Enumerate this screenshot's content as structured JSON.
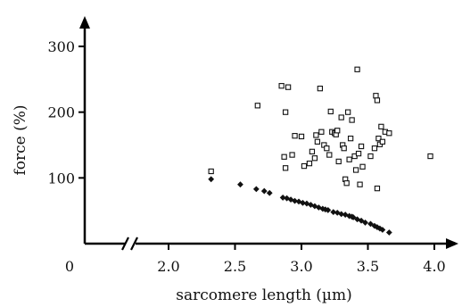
{
  "chart_data": {
    "type": "scatter",
    "xlabel": "sarcomere length (µm)",
    "ylabel": "force (%)",
    "x_ticks": [
      {
        "value": 2.0,
        "label": "2.0"
      },
      {
        "value": 2.5,
        "label": "2.5"
      },
      {
        "value": 3.0,
        "label": "3.0"
      },
      {
        "value": 3.5,
        "label": "3.5"
      },
      {
        "value": 4.0,
        "label": "4.0"
      }
    ],
    "x_origin_label": "0",
    "y_ticks": [
      {
        "value": 100,
        "label": "100"
      },
      {
        "value": 200,
        "label": "200"
      },
      {
        "value": 300,
        "label": "300"
      }
    ],
    "xlim": [
      1.6,
      4.2
    ],
    "ylim": [
      0,
      330
    ],
    "x_axis_break": true,
    "grid": false,
    "legend": "none",
    "series": [
      {
        "marker": "open-square",
        "color": "#111111",
        "points": [
          [
            2.32,
            110
          ],
          [
            2.67,
            210
          ],
          [
            2.85,
            240
          ],
          [
            2.9,
            238
          ],
          [
            2.88,
            200
          ],
          [
            2.95,
            164
          ],
          [
            2.87,
            132
          ],
          [
            2.93,
            135
          ],
          [
            2.88,
            115
          ],
          [
            3.0,
            163
          ],
          [
            3.02,
            118
          ],
          [
            3.06,
            122
          ],
          [
            3.08,
            140
          ],
          [
            3.1,
            130
          ],
          [
            3.11,
            165
          ],
          [
            3.14,
            236
          ],
          [
            3.15,
            170
          ],
          [
            3.17,
            150
          ],
          [
            3.19,
            145
          ],
          [
            3.21,
            135
          ],
          [
            3.22,
            201
          ],
          [
            3.23,
            170
          ],
          [
            3.25,
            168
          ],
          [
            3.26,
            166
          ],
          [
            3.27,
            172
          ],
          [
            3.28,
            125
          ],
          [
            3.3,
            192
          ],
          [
            3.31,
            150
          ],
          [
            3.32,
            145
          ],
          [
            3.33,
            98
          ],
          [
            3.34,
            92
          ],
          [
            3.35,
            200
          ],
          [
            3.36,
            128
          ],
          [
            3.37,
            160
          ],
          [
            3.38,
            188
          ],
          [
            3.4,
            133
          ],
          [
            3.41,
            112
          ],
          [
            3.42,
            265
          ],
          [
            3.43,
            137
          ],
          [
            3.44,
            90
          ],
          [
            3.45,
            148
          ],
          [
            3.46,
            117
          ],
          [
            3.52,
            133
          ],
          [
            3.55,
            145
          ],
          [
            3.56,
            225
          ],
          [
            3.57,
            218
          ],
          [
            3.58,
            160
          ],
          [
            3.59,
            151
          ],
          [
            3.6,
            178
          ],
          [
            3.61,
            155
          ],
          [
            3.63,
            170
          ],
          [
            3.66,
            168
          ],
          [
            3.97,
            133
          ],
          [
            3.57,
            84
          ],
          [
            3.12,
            155
          ]
        ]
      },
      {
        "marker": "filled-diamond",
        "color": "#111111",
        "points": [
          [
            2.32,
            98
          ],
          [
            2.54,
            90
          ],
          [
            2.66,
            83
          ],
          [
            2.72,
            80
          ],
          [
            2.76,
            77
          ],
          [
            2.86,
            70
          ],
          [
            2.89,
            69
          ],
          [
            2.92,
            67
          ],
          [
            2.95,
            65
          ],
          [
            2.98,
            64
          ],
          [
            3.01,
            62
          ],
          [
            3.04,
            61
          ],
          [
            3.07,
            59
          ],
          [
            3.1,
            57
          ],
          [
            3.13,
            55
          ],
          [
            3.16,
            53
          ],
          [
            3.2,
            51
          ],
          [
            3.24,
            48
          ],
          [
            3.27,
            47
          ],
          [
            3.3,
            45
          ],
          [
            3.33,
            44
          ],
          [
            3.36,
            42
          ],
          [
            3.39,
            40
          ],
          [
            3.42,
            37
          ],
          [
            3.45,
            35
          ],
          [
            3.48,
            32
          ],
          [
            3.52,
            30
          ],
          [
            3.55,
            27
          ],
          [
            3.57,
            25
          ],
          [
            3.59,
            23
          ],
          [
            3.61,
            21
          ],
          [
            3.66,
            17
          ],
          [
            3.18,
            52
          ],
          [
            3.38,
            41
          ]
        ]
      }
    ]
  }
}
